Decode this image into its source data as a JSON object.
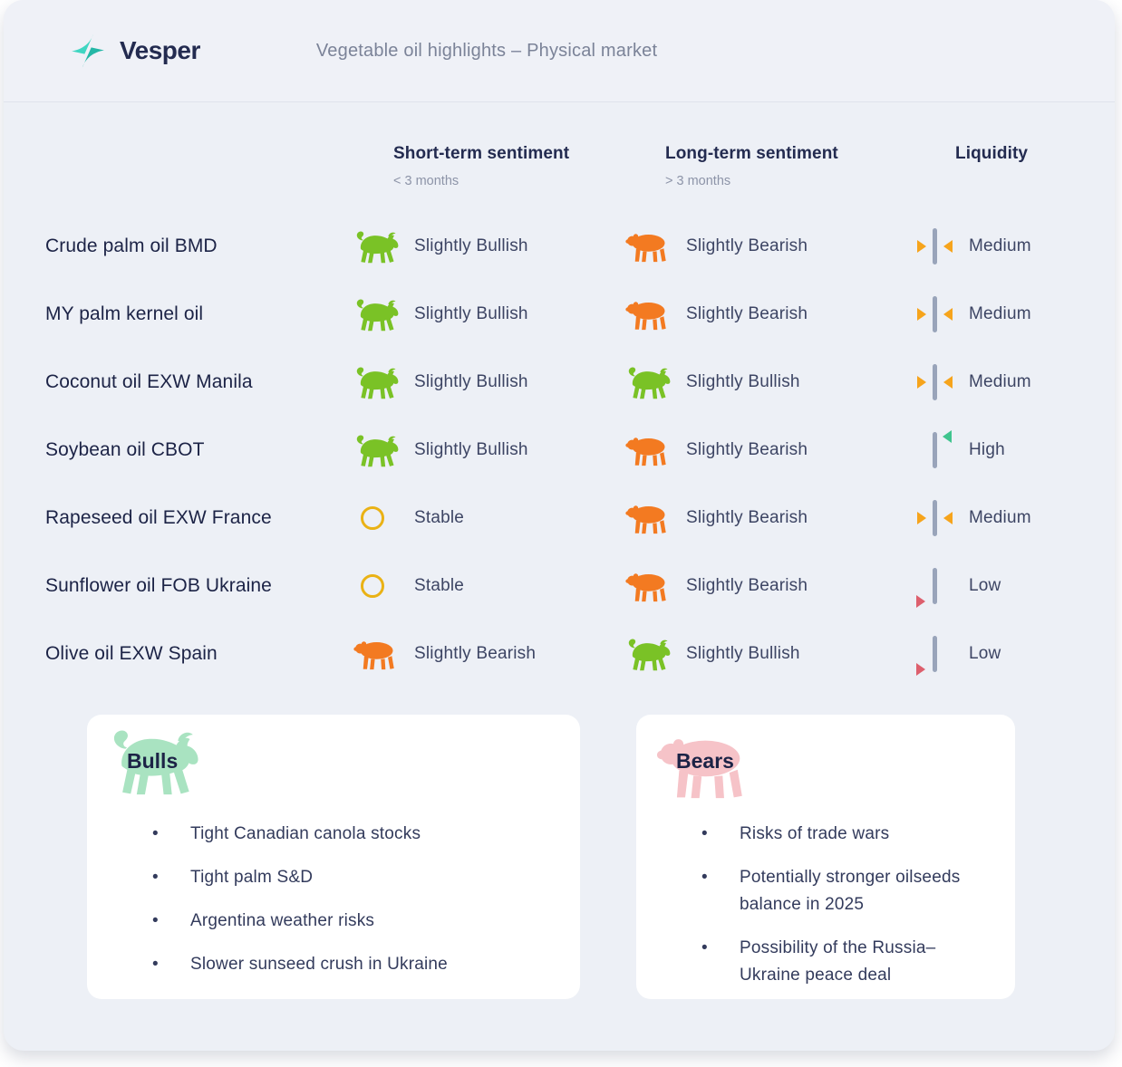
{
  "header": {
    "brand": "Vesper",
    "subtitle": "Vegetable oil highlights – Physical market"
  },
  "table": {
    "columns": [
      {
        "label": "Short-term sentiment",
        "sublabel": "< 3 months"
      },
      {
        "label": "Long-term sentiment",
        "sublabel": "> 3 months"
      },
      {
        "label": "Liquidity",
        "sublabel": ""
      }
    ],
    "rows": [
      {
        "commodity": "Crude palm oil BMD",
        "short_term": {
          "label": "Slightly Bullish",
          "icon": "bull-icon"
        },
        "long_term": {
          "label": "Slightly Bearish",
          "icon": "bear-icon"
        },
        "liquidity": {
          "label": "Medium",
          "level": "medium"
        }
      },
      {
        "commodity": "MY palm kernel oil",
        "short_term": {
          "label": "Slightly Bullish",
          "icon": "bull-icon"
        },
        "long_term": {
          "label": "Slightly Bearish",
          "icon": "bear-icon"
        },
        "liquidity": {
          "label": "Medium",
          "level": "medium"
        }
      },
      {
        "commodity": "Coconut oil EXW Manila",
        "short_term": {
          "label": "Slightly Bullish",
          "icon": "bull-icon"
        },
        "long_term": {
          "label": "Slightly Bullish",
          "icon": "bull-icon"
        },
        "liquidity": {
          "label": "Medium",
          "level": "medium"
        }
      },
      {
        "commodity": "Soybean oil CBOT",
        "short_term": {
          "label": "Slightly Bullish",
          "icon": "bull-icon"
        },
        "long_term": {
          "label": "Slightly Bearish",
          "icon": "bear-icon"
        },
        "liquidity": {
          "label": "High",
          "level": "high"
        }
      },
      {
        "commodity": "Rapeseed oil EXW France",
        "short_term": {
          "label": "Stable",
          "icon": "stable-icon"
        },
        "long_term": {
          "label": "Slightly Bearish",
          "icon": "bear-icon"
        },
        "liquidity": {
          "label": "Medium",
          "level": "medium"
        }
      },
      {
        "commodity": "Sunflower oil FOB Ukraine",
        "short_term": {
          "label": "Stable",
          "icon": "stable-icon"
        },
        "long_term": {
          "label": "Slightly Bearish",
          "icon": "bear-icon"
        },
        "liquidity": {
          "label": "Low",
          "level": "low"
        }
      },
      {
        "commodity": "Olive oil EXW Spain",
        "short_term": {
          "label": "Slightly Bearish",
          "icon": "bear-icon"
        },
        "long_term": {
          "label": "Slightly Bullish",
          "icon": "bull-icon"
        },
        "liquidity": {
          "label": "Low",
          "level": "low"
        }
      }
    ]
  },
  "cards": {
    "bulls": {
      "title": "Bulls",
      "items": [
        "Tight Canadian canola stocks",
        "Tight palm S&D",
        "Argentina weather risks",
        "Slower sunseed crush in Ukraine"
      ]
    },
    "bears": {
      "title": "Bears",
      "items": [
        "Risks of trade wars",
        "Potentially stronger oilseeds balance in 2025",
        "Possibility of the Russia–Ukraine peace deal"
      ]
    }
  },
  "colors": {
    "bullish": "#7ac226",
    "bearish": "#f37a21",
    "stable": "#eab215",
    "liquidity_high": "#3fc48e",
    "liquidity_medium": "#f6a41c",
    "liquidity_low": "#dd5f6d",
    "bulls_card_icon": "#a9e3c1",
    "bears_card_icon": "#f6c3c8",
    "brand_teal": "#3fd6c2"
  }
}
